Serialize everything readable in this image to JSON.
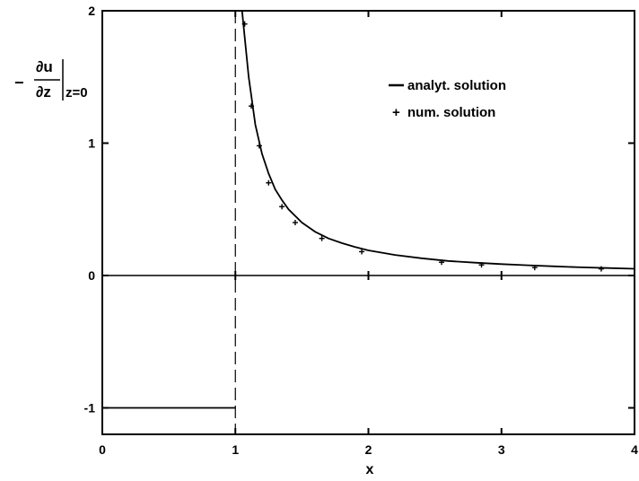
{
  "chart_data": {
    "type": "line",
    "xlabel": "x",
    "ylabel": {
      "prefix": "−",
      "numerator": "∂u",
      "denominator": "∂z",
      "subscript": "z=0"
    },
    "xlim": [
      0,
      4
    ],
    "ylim": [
      -1.2,
      2
    ],
    "xticks": [
      0,
      1,
      2,
      3,
      4
    ],
    "yticks": [
      -1,
      0,
      1,
      2
    ],
    "grid": false,
    "legend_position": "top-right",
    "vertical_dashed_line_x": 1,
    "zero_line_y": 0,
    "series": [
      {
        "name": "analyt. solution",
        "style": "solid",
        "segments": [
          {
            "x": [
              0,
              1
            ],
            "y": [
              -1,
              -1
            ]
          },
          {
            "x": [
              1.05,
              1.1,
              1.15,
              1.2,
              1.25,
              1.3,
              1.35,
              1.4,
              1.5,
              1.6,
              1.7,
              1.8,
              1.9,
              2.0,
              2.2,
              2.4,
              2.6,
              2.8,
              3.0,
              3.2,
              3.4,
              3.6,
              3.8,
              4.0
            ],
            "y": [
              2.0,
              1.5,
              1.14,
              0.92,
              0.77,
              0.65,
              0.57,
              0.5,
              0.4,
              0.33,
              0.28,
              0.245,
              0.215,
              0.19,
              0.155,
              0.13,
              0.11,
              0.097,
              0.086,
              0.077,
              0.069,
              0.062,
              0.056,
              0.051
            ]
          }
        ]
      },
      {
        "name": "num. solution",
        "style": "markers",
        "marker": "+",
        "x": [
          1.07,
          1.12,
          1.18,
          1.25,
          1.35,
          1.45,
          1.65,
          1.95,
          2.55,
          2.85,
          3.25,
          3.75
        ],
        "y": [
          1.9,
          1.28,
          0.98,
          0.7,
          0.52,
          0.4,
          0.28,
          0.18,
          0.1,
          0.08,
          0.06,
          0.05
        ]
      }
    ]
  }
}
